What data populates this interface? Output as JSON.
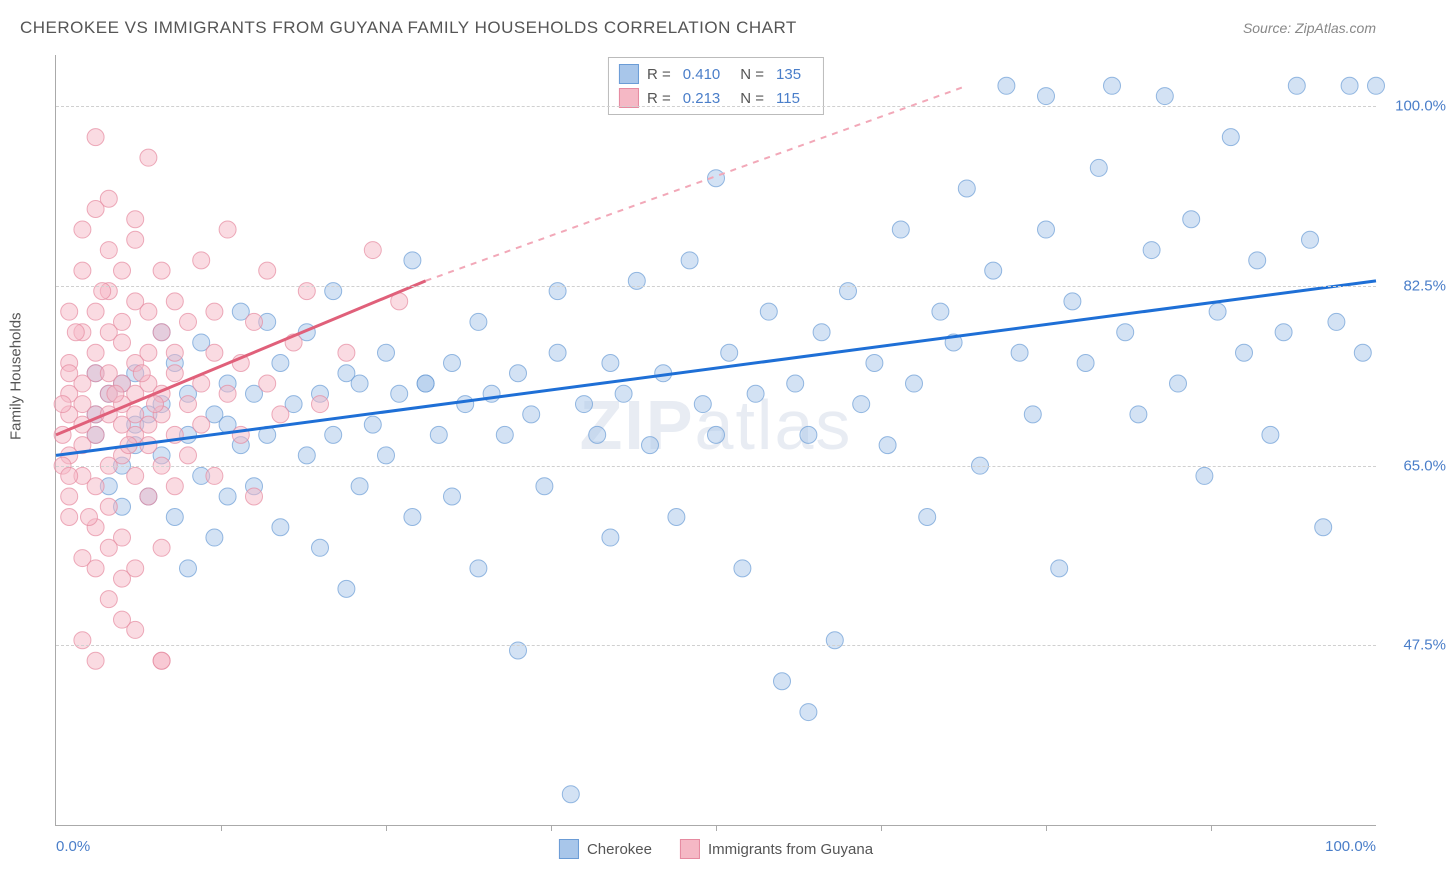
{
  "title": "CHEROKEE VS IMMIGRANTS FROM GUYANA FAMILY HOUSEHOLDS CORRELATION CHART",
  "source": "Source: ZipAtlas.com",
  "watermark": {
    "bold": "ZIP",
    "rest": "atlas"
  },
  "y_axis_title": "Family Households",
  "chart": {
    "type": "scatter",
    "background_color": "#ffffff",
    "grid_color": "#d0d0d0",
    "axis_color": "#aaaaaa",
    "text_color": "#555555",
    "value_color": "#4a7ec9",
    "xlim": [
      0,
      100
    ],
    "ylim": [
      30,
      105
    ],
    "y_ticks": [
      {
        "v": 47.5,
        "label": "47.5%"
      },
      {
        "v": 65.0,
        "label": "65.0%"
      },
      {
        "v": 82.5,
        "label": "82.5%"
      },
      {
        "v": 100.0,
        "label": "100.0%"
      }
    ],
    "x_minor_ticks": [
      12.5,
      25,
      37.5,
      50,
      62.5,
      75,
      87.5
    ],
    "x_labels": [
      {
        "v": 0,
        "label": "0.0%"
      },
      {
        "v": 100,
        "label": "100.0%"
      }
    ],
    "marker_radius": 8.5,
    "marker_opacity": 0.5,
    "stroke_width": 1.5,
    "series": [
      {
        "name": "Cherokee",
        "color_fill": "#a8c6ea",
        "color_stroke": "#6b9cd6",
        "swatch_fill": "#a8c6ea",
        "swatch_border": "#6b9cd6",
        "R": "0.410",
        "N": "135",
        "trend": {
          "x1": 0,
          "y1": 66,
          "x2": 100,
          "y2": 83,
          "color": "#1e6fd6"
        },
        "points": [
          [
            3,
            70
          ],
          [
            3,
            68
          ],
          [
            4,
            72
          ],
          [
            5,
            65
          ],
          [
            5,
            73
          ],
          [
            5,
            61
          ],
          [
            6,
            67
          ],
          [
            6,
            74
          ],
          [
            7,
            70
          ],
          [
            7,
            62
          ],
          [
            8,
            71
          ],
          [
            8,
            66
          ],
          [
            9,
            75
          ],
          [
            9,
            60
          ],
          [
            10,
            68
          ],
          [
            10,
            72
          ],
          [
            11,
            64
          ],
          [
            11,
            77
          ],
          [
            12,
            70
          ],
          [
            12,
            58
          ],
          [
            13,
            73
          ],
          [
            13,
            69
          ],
          [
            14,
            67
          ],
          [
            14,
            80
          ],
          [
            15,
            72
          ],
          [
            15,
            63
          ],
          [
            16,
            68
          ],
          [
            17,
            75
          ],
          [
            17,
            59
          ],
          [
            18,
            71
          ],
          [
            19,
            66
          ],
          [
            19,
            78
          ],
          [
            20,
            72
          ],
          [
            20,
            57
          ],
          [
            21,
            68
          ],
          [
            21,
            82
          ],
          [
            22,
            74
          ],
          [
            23,
            73
          ],
          [
            23,
            63
          ],
          [
            24,
            69
          ],
          [
            25,
            76
          ],
          [
            25,
            66
          ],
          [
            26,
            72
          ],
          [
            27,
            85
          ],
          [
            27,
            60
          ],
          [
            28,
            73
          ],
          [
            28,
            73
          ],
          [
            29,
            68
          ],
          [
            30,
            75
          ],
          [
            30,
            62
          ],
          [
            31,
            71
          ],
          [
            32,
            79
          ],
          [
            32,
            55
          ],
          [
            33,
            72
          ],
          [
            34,
            68
          ],
          [
            35,
            74
          ],
          [
            35,
            47
          ],
          [
            36,
            70
          ],
          [
            37,
            63
          ],
          [
            38,
            76
          ],
          [
            38,
            82
          ],
          [
            39,
            33
          ],
          [
            40,
            71
          ],
          [
            41,
            68
          ],
          [
            42,
            75
          ],
          [
            42,
            58
          ],
          [
            43,
            72
          ],
          [
            44,
            83
          ],
          [
            45,
            67
          ],
          [
            46,
            74
          ],
          [
            47,
            60
          ],
          [
            48,
            85
          ],
          [
            49,
            71
          ],
          [
            50,
            93
          ],
          [
            50,
            68
          ],
          [
            51,
            76
          ],
          [
            52,
            55
          ],
          [
            53,
            72
          ],
          [
            54,
            80
          ],
          [
            55,
            44
          ],
          [
            56,
            73
          ],
          [
            57,
            68
          ],
          [
            57,
            41
          ],
          [
            58,
            78
          ],
          [
            59,
            48
          ],
          [
            60,
            82
          ],
          [
            61,
            71
          ],
          [
            62,
            75
          ],
          [
            63,
            67
          ],
          [
            64,
            88
          ],
          [
            65,
            73
          ],
          [
            66,
            60
          ],
          [
            67,
            80
          ],
          [
            68,
            77
          ],
          [
            69,
            92
          ],
          [
            70,
            65
          ],
          [
            71,
            84
          ],
          [
            72,
            102
          ],
          [
            73,
            76
          ],
          [
            74,
            70
          ],
          [
            75,
            88
          ],
          [
            75,
            101
          ],
          [
            76,
            55
          ],
          [
            77,
            81
          ],
          [
            78,
            75
          ],
          [
            79,
            94
          ],
          [
            80,
            102
          ],
          [
            81,
            78
          ],
          [
            82,
            70
          ],
          [
            83,
            86
          ],
          [
            84,
            101
          ],
          [
            85,
            73
          ],
          [
            86,
            89
          ],
          [
            87,
            64
          ],
          [
            88,
            80
          ],
          [
            89,
            97
          ],
          [
            90,
            76
          ],
          [
            91,
            85
          ],
          [
            92,
            68
          ],
          [
            93,
            78
          ],
          [
            94,
            102
          ],
          [
            95,
            87
          ],
          [
            96,
            59
          ],
          [
            97,
            79
          ],
          [
            98,
            102
          ],
          [
            99,
            76
          ],
          [
            100,
            102
          ],
          [
            3,
            74
          ],
          [
            4,
            63
          ],
          [
            6,
            69
          ],
          [
            8,
            78
          ],
          [
            10,
            55
          ],
          [
            13,
            62
          ],
          [
            16,
            79
          ],
          [
            22,
            53
          ]
        ]
      },
      {
        "name": "Immigrants from Guyana",
        "color_fill": "#f5b8c5",
        "color_stroke": "#e68aa0",
        "swatch_fill": "#f5b8c5",
        "swatch_border": "#e68aa0",
        "R": "0.213",
        "N": "115",
        "trend_solid": {
          "x1": 0,
          "y1": 68,
          "x2": 28,
          "y2": 83,
          "color": "#e0607a"
        },
        "trend_dash": {
          "x1": 28,
          "y1": 83,
          "x2": 69,
          "y2": 102,
          "color": "#f2a8b8"
        },
        "points": [
          [
            1,
            70
          ],
          [
            1,
            72
          ],
          [
            1,
            66
          ],
          [
            1,
            75
          ],
          [
            1,
            62
          ],
          [
            2,
            69
          ],
          [
            2,
            73
          ],
          [
            2,
            78
          ],
          [
            2,
            64
          ],
          [
            2,
            71
          ],
          [
            2,
            67
          ],
          [
            3,
            74
          ],
          [
            3,
            70
          ],
          [
            3,
            80
          ],
          [
            3,
            63
          ],
          [
            3,
            76
          ],
          [
            3,
            68
          ],
          [
            3,
            59
          ],
          [
            4,
            72
          ],
          [
            4,
            65
          ],
          [
            4,
            78
          ],
          [
            4,
            70
          ],
          [
            4,
            82
          ],
          [
            4,
            61
          ],
          [
            4,
            74
          ],
          [
            5,
            69
          ],
          [
            5,
            77
          ],
          [
            5,
            71
          ],
          [
            5,
            84
          ],
          [
            5,
            66
          ],
          [
            5,
            73
          ],
          [
            5,
            58
          ],
          [
            5,
            79
          ],
          [
            6,
            72
          ],
          [
            6,
            68
          ],
          [
            6,
            75
          ],
          [
            6,
            81
          ],
          [
            6,
            64
          ],
          [
            6,
            70
          ],
          [
            6,
            87
          ],
          [
            7,
            73
          ],
          [
            7,
            69
          ],
          [
            7,
            76
          ],
          [
            7,
            62
          ],
          [
            7,
            80
          ],
          [
            7,
            67
          ],
          [
            8,
            72
          ],
          [
            8,
            78
          ],
          [
            8,
            65
          ],
          [
            8,
            84
          ],
          [
            8,
            70
          ],
          [
            8,
            57
          ],
          [
            9,
            74
          ],
          [
            9,
            68
          ],
          [
            9,
            81
          ],
          [
            9,
            63
          ],
          [
            9,
            76
          ],
          [
            10,
            71
          ],
          [
            10,
            79
          ],
          [
            10,
            66
          ],
          [
            11,
            73
          ],
          [
            11,
            85
          ],
          [
            11,
            69
          ],
          [
            12,
            76
          ],
          [
            12,
            64
          ],
          [
            12,
            80
          ],
          [
            13,
            72
          ],
          [
            13,
            88
          ],
          [
            14,
            75
          ],
          [
            14,
            68
          ],
          [
            15,
            79
          ],
          [
            15,
            62
          ],
          [
            16,
            73
          ],
          [
            16,
            84
          ],
          [
            17,
            70
          ],
          [
            18,
            77
          ],
          [
            19,
            82
          ],
          [
            20,
            71
          ],
          [
            22,
            76
          ],
          [
            24,
            86
          ],
          [
            26,
            81
          ],
          [
            2,
            48
          ],
          [
            3,
            46
          ],
          [
            4,
            52
          ],
          [
            5,
            54
          ],
          [
            6,
            49
          ],
          [
            3,
            97
          ],
          [
            7,
            95
          ],
          [
            3,
            90
          ],
          [
            4,
            86
          ],
          [
            1,
            80
          ],
          [
            2,
            84
          ],
          [
            8,
            46
          ],
          [
            8,
            46
          ],
          [
            2,
            56
          ],
          [
            4,
            57
          ],
          [
            6,
            55
          ],
          [
            1,
            60
          ],
          [
            3,
            55
          ],
          [
            5,
            50
          ],
          [
            2,
            88
          ],
          [
            4,
            91
          ],
          [
            6,
            89
          ],
          [
            1,
            74
          ],
          [
            0.5,
            68
          ],
          [
            0.5,
            71
          ],
          [
            0.5,
            65
          ],
          [
            1,
            64
          ],
          [
            1.5,
            78
          ],
          [
            2.5,
            60
          ],
          [
            3.5,
            82
          ],
          [
            4.5,
            72
          ],
          [
            5.5,
            67
          ],
          [
            6.5,
            74
          ],
          [
            7.5,
            71
          ]
        ]
      }
    ]
  },
  "legend": {
    "R_label": "R =",
    "N_label": "N ="
  }
}
